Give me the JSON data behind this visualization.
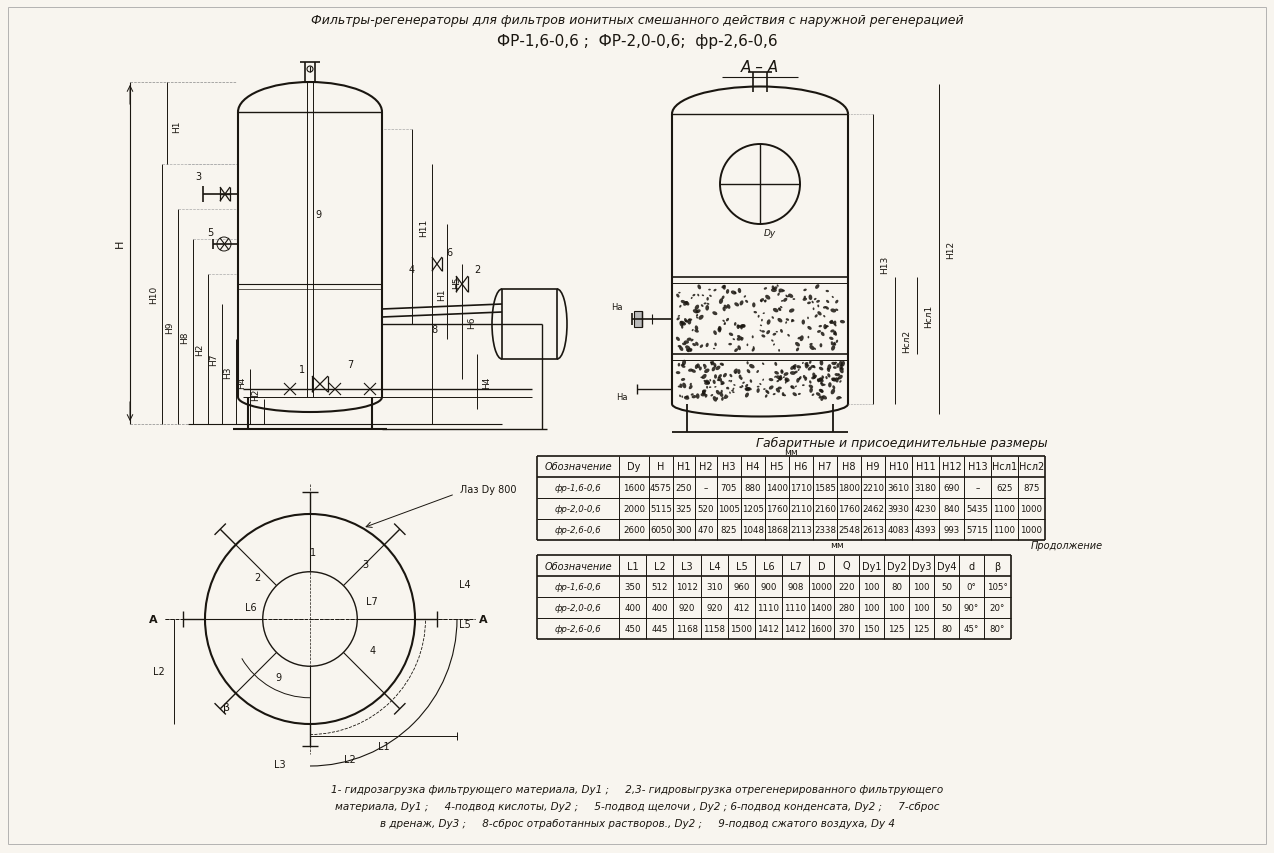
{
  "bg_color": "#f8f5ef",
  "ink_color": "#1a1610",
  "title_line1": "Фильтры-регенераторы для фильтров ионитных смешанного действия с наружной регенерацией",
  "title_line2": "ФР-1,6-0,6 ;  ФР-2,0-0,6;  фр-2,6-0,6",
  "section_label": "А – А",
  "table_title": "Габаритные и присоединительные размеры",
  "table1_headers": [
    "Обозначение",
    "Dy",
    "H",
    "H1",
    "H2",
    "H3",
    "H4",
    "H5",
    "H6",
    "H7",
    "H8",
    "H9",
    "H10",
    "H11",
    "H12",
    "H13",
    "Нсл1",
    "Нсл2"
  ],
  "table1_rows": [
    [
      "фр-1,6-0,6",
      "1600",
      "4575",
      "250",
      "–",
      "705",
      "880",
      "1400",
      "1710",
      "1585",
      "1800",
      "2210",
      "3610",
      "3180",
      "690",
      "–",
      "625",
      "875"
    ],
    [
      "фр-2,0-0,6",
      "2000",
      "5115",
      "325",
      "520",
      "1005",
      "1205",
      "1760",
      "2110",
      "2160",
      "1760",
      "2462",
      "3930",
      "4230",
      "840",
      "5435",
      "1100",
      "1000"
    ],
    [
      "фр-2,6-0,6",
      "2600",
      "6050",
      "300",
      "470",
      "825",
      "1048",
      "1868",
      "2113",
      "2338",
      "2548",
      "2613",
      "4083",
      "4393",
      "993",
      "5715",
      "1100",
      "1000"
    ]
  ],
  "table2_mm": "мм",
  "table2_prod": "Продолжение",
  "table2_headers": [
    "Обозначение",
    "L1",
    "L2",
    "L3",
    "L4",
    "L5",
    "L6",
    "L7",
    "D",
    "Q",
    "Dy1",
    "Dy2",
    "Dy3",
    "Dy4",
    "d",
    "β"
  ],
  "table2_rows": [
    [
      "фр-1,6-0,6",
      "350",
      "512",
      "1012",
      "310",
      "960",
      "900",
      "908",
      "1000",
      "220",
      "100",
      "80",
      "100",
      "50",
      "0°",
      "105°"
    ],
    [
      "фр-2,0-0,6",
      "400",
      "400",
      "920",
      "920",
      "412",
      "1110",
      "1110",
      "1400",
      "280",
      "100",
      "100",
      "100",
      "50",
      "90°",
      "20°"
    ],
    [
      "фр-2,6-0,6",
      "450",
      "445",
      "1168",
      "1158",
      "1500",
      "1412",
      "1412",
      "1600",
      "370",
      "150",
      "125",
      "125",
      "80",
      "45°",
      "80°"
    ]
  ],
  "footnote_lines": [
    "1- гидрозагрузка фильтрующего материала, Dу1 ;     2,3- гидровыгрузка отрегенерированного фильтрующего",
    "материала, Dу1 ;     4-подвод кислоты, Dу2 ;     5-подвод щелочи , Dу2 ; 6-подвод конденсата, Dу2 ;     7-сброс",
    "в дренаж, Dу3 ;     8-сброс отработанных растворов., Dу2 ;     9-подвод сжатого воздуха, Dу 4"
  ],
  "laz_label": "Лаз Dy 800",
  "aa_label": "А – А",
  "dy_label": "Dy",
  "h_labels_left": [
    "H",
    "H10",
    "H9",
    "H8",
    "H2",
    "H7",
    "H3",
    "H4",
    "H1"
  ],
  "h_labels_right": [
    "H11",
    "H1",
    "H5",
    "H6",
    "H4"
  ]
}
